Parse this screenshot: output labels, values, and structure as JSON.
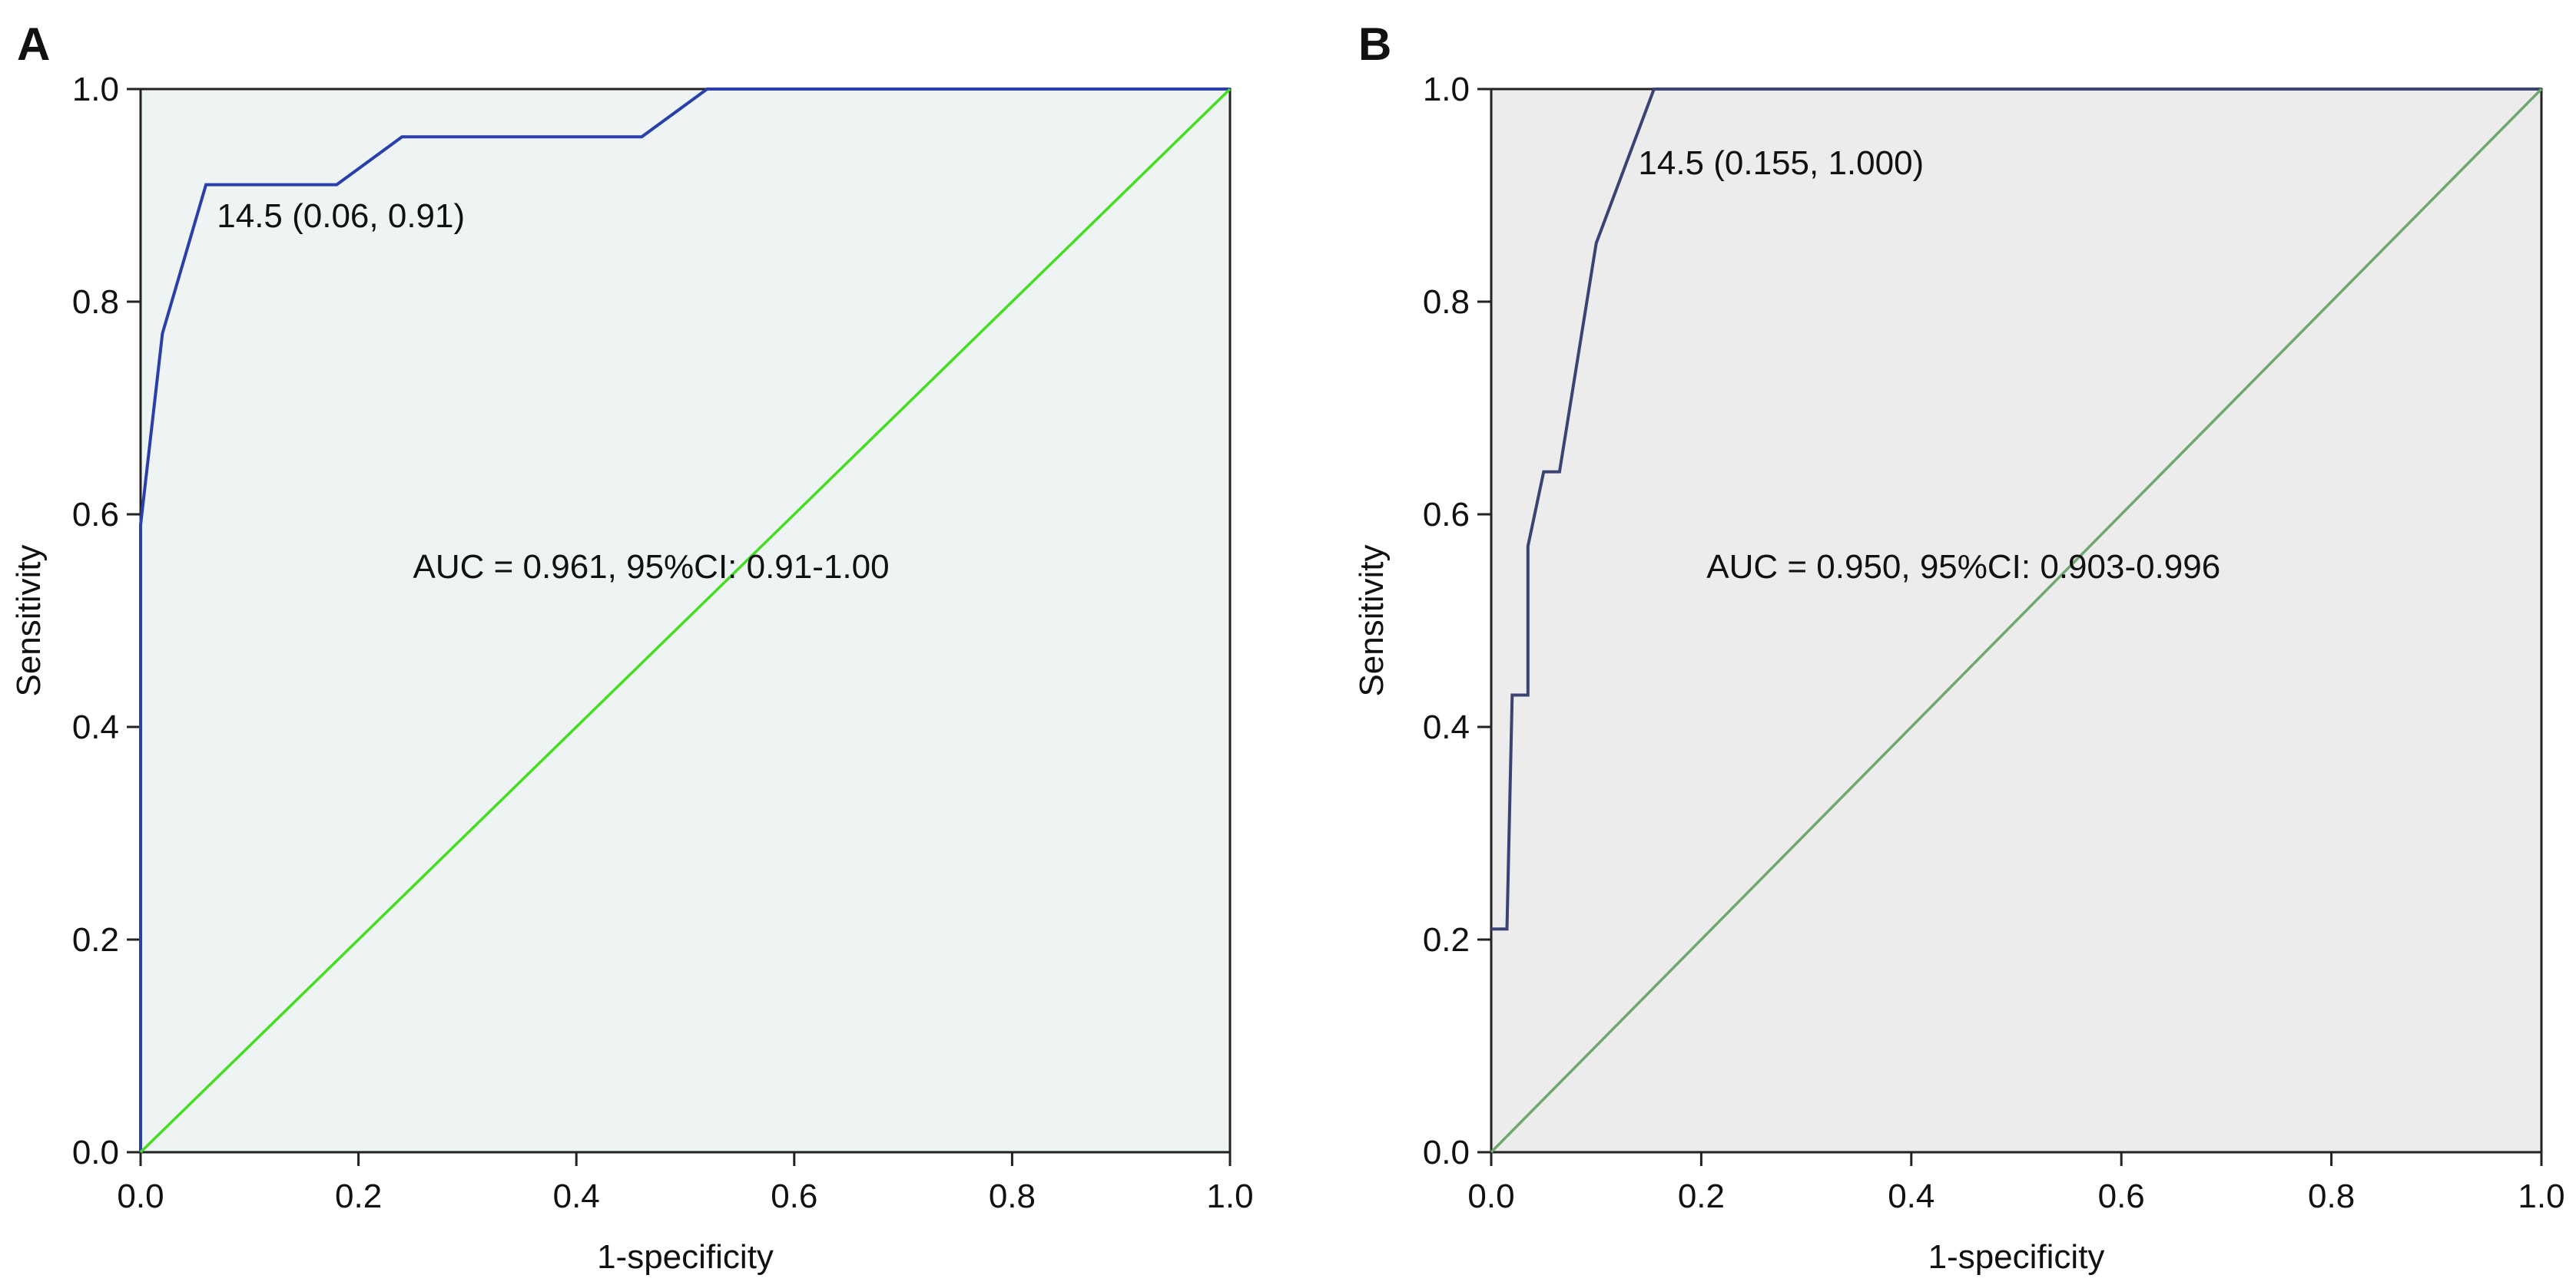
{
  "chart_data": [
    {
      "panel_label": "A",
      "type": "line",
      "xlabel": "1-specificity",
      "ylabel": "Sensitivity",
      "xlim": [
        0,
        1
      ],
      "ylim": [
        0,
        1
      ],
      "xticks": [
        "0.0",
        "0.2",
        "0.4",
        "0.6",
        "0.8",
        "1.0"
      ],
      "yticks": [
        "0.0",
        "0.2",
        "0.4",
        "0.6",
        "0.8",
        "1.0"
      ],
      "grid": false,
      "background_color": "#eef3f3",
      "series": [
        {
          "color": "#2b3faa",
          "x": [
            0,
            0,
            0.02,
            0.02,
            0.06,
            0.18,
            0.24,
            0.46,
            0.52,
            1.0
          ],
          "y": [
            0,
            0.59,
            0.77,
            0.77,
            0.91,
            0.91,
            0.955,
            0.955,
            1.0,
            1.0
          ]
        },
        {
          "color": "#44dd22",
          "x": [
            0,
            1
          ],
          "y": [
            0,
            1
          ]
        }
      ],
      "annotations": [
        {
          "text": "14.5 (0.06, 0.91)",
          "x": 0.07,
          "y": 0.87
        },
        {
          "text": "AUC = 0.961, 95%CI: 0.91-1.00",
          "x": 0.25,
          "y": 0.54
        }
      ]
    },
    {
      "panel_label": "B",
      "type": "line",
      "xlabel": "1-specificity",
      "ylabel": "Sensitivity",
      "xlim": [
        0,
        1
      ],
      "ylim": [
        0,
        1
      ],
      "xticks": [
        "0.0",
        "0.2",
        "0.4",
        "0.6",
        "0.8",
        "1.0"
      ],
      "yticks": [
        "0.0",
        "0.2",
        "0.4",
        "0.6",
        "0.8",
        "1.0"
      ],
      "grid": false,
      "background_color": "#ececec",
      "series": [
        {
          "color": "#3a4372",
          "x": [
            0,
            0.015,
            0.02,
            0.035,
            0.035,
            0.05,
            0.05,
            0.065,
            0.1,
            0.155,
            1.0
          ],
          "y": [
            0.21,
            0.21,
            0.43,
            0.43,
            0.57,
            0.64,
            0.64,
            0.64,
            0.855,
            1.0,
            1.0
          ]
        },
        {
          "color": "#6fa86f",
          "x": [
            0,
            1
          ],
          "y": [
            0,
            1
          ]
        }
      ],
      "annotations": [
        {
          "text": "14.5 (0.155, 1.000)",
          "x": 0.14,
          "y": 0.92
        },
        {
          "text": "AUC = 0.950, 95%CI: 0.903-0.996",
          "x": 0.205,
          "y": 0.54
        }
      ]
    }
  ]
}
